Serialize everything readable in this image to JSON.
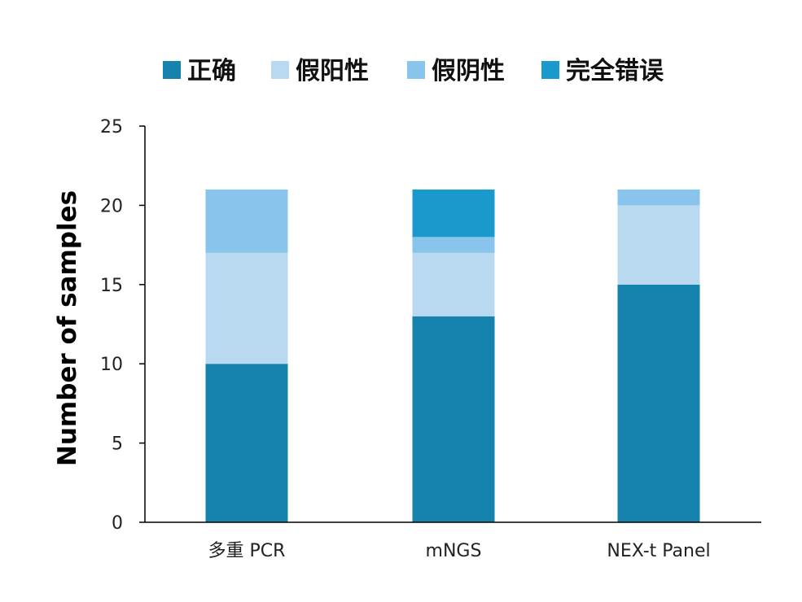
{
  "chart_data": {
    "type": "bar",
    "stacked": true,
    "title": "",
    "xlabel": "",
    "ylabel": "Number of samples",
    "ylim": [
      0,
      25
    ],
    "yticks": [
      0,
      5,
      10,
      15,
      20,
      25
    ],
    "grid": false,
    "legend_position": "top",
    "categories": [
      "多重 PCR",
      "mNGS",
      "NEX-t Panel"
    ],
    "series": [
      {
        "name": "正确",
        "color": "#1682AE",
        "values": [
          10,
          13,
          15
        ]
      },
      {
        "name": "假阳性",
        "color": "#B8D9F0",
        "values": [
          7,
          4,
          5
        ]
      },
      {
        "name": "假阴性",
        "color": "#88C4EB",
        "values": [
          4,
          1,
          1
        ]
      },
      {
        "name": "完全错误",
        "color": "#1A9ACC",
        "values": [
          0,
          3,
          0
        ]
      }
    ]
  }
}
